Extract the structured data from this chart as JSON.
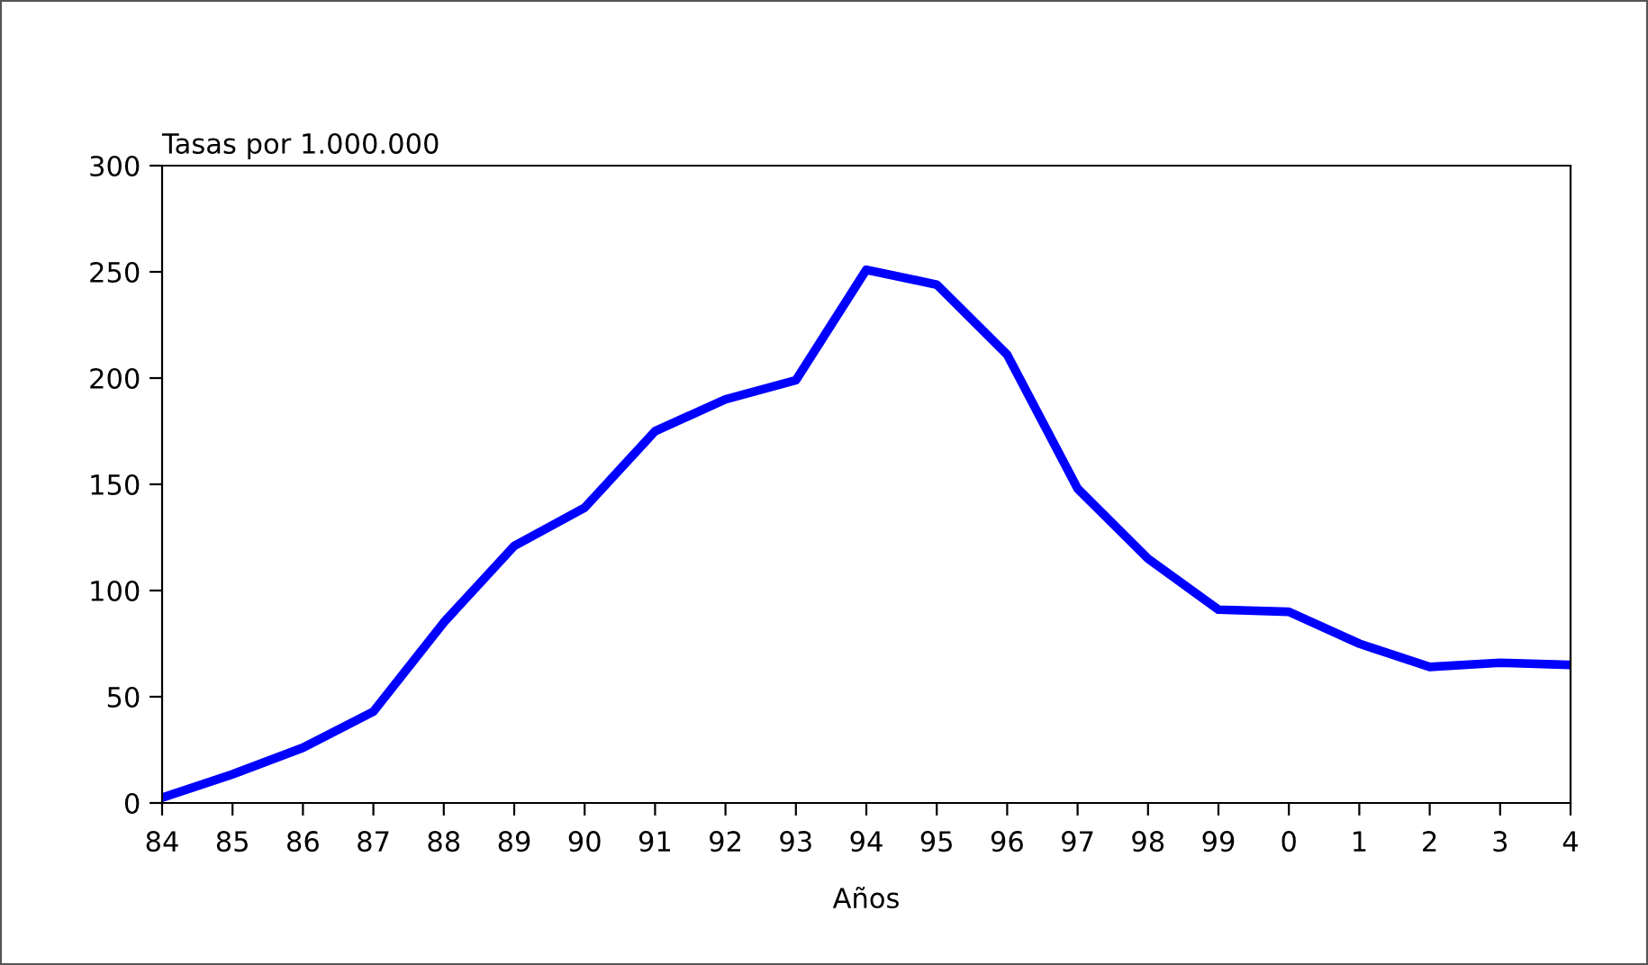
{
  "chart_data": {
    "type": "line",
    "ylabel": "Tasas por 1.000.000",
    "xlabel": "Años",
    "categories": [
      "84",
      "85",
      "86",
      "87",
      "88",
      "89",
      "90",
      "91",
      "92",
      "93",
      "94",
      "95",
      "96",
      "97",
      "98",
      "99",
      "0",
      "1",
      "2",
      "3",
      "4"
    ],
    "series": [
      {
        "color": "#0000ff",
        "values": [
          2.5,
          13.5,
          26,
          43,
          85,
          121,
          139,
          175,
          190,
          199,
          251,
          244,
          211,
          148,
          115,
          91,
          90,
          75,
          64,
          66,
          65
        ]
      }
    ],
    "ylim": [
      0,
      300
    ],
    "yticks": [
      0,
      50,
      100,
      150,
      200,
      250,
      300
    ],
    "grid": false,
    "legend": false,
    "marker": "none",
    "line_style": "solid"
  }
}
